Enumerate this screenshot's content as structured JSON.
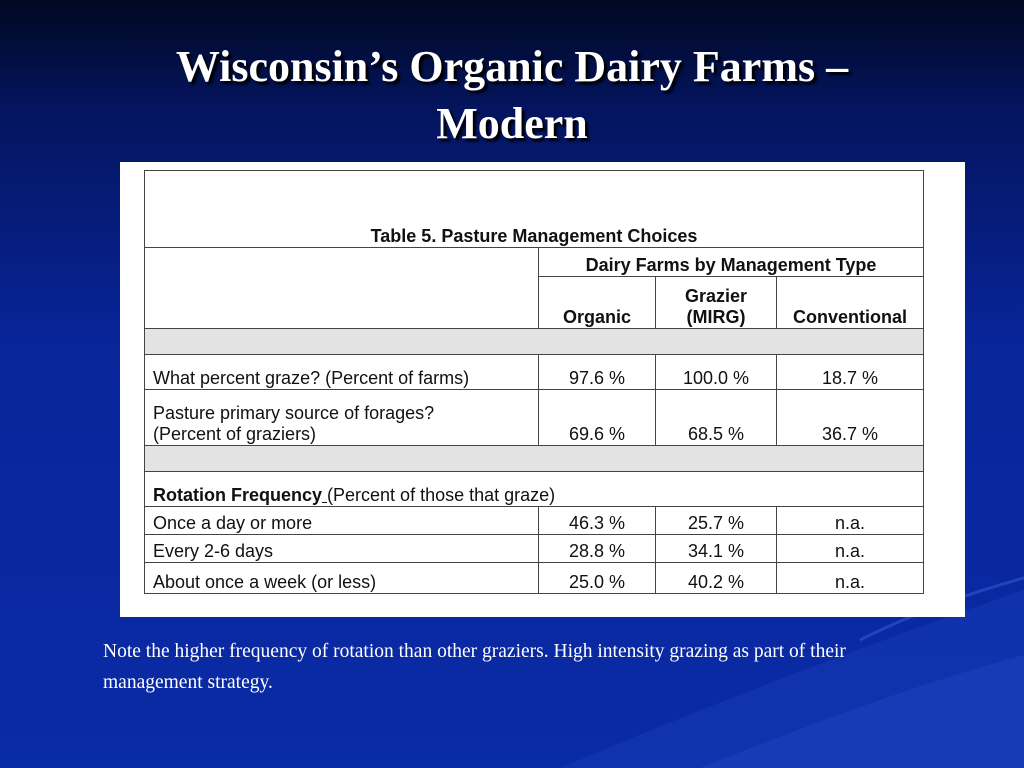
{
  "slide": {
    "title_line1": "Wisconsin’s Organic Dairy Farms –",
    "title_line2": "Modern",
    "note": "Note the higher frequency of rotation than other graziers.  High intensity grazing as part of their management strategy."
  },
  "table": {
    "caption": "Table 5.  Pasture Management Choices",
    "group_header": "Dairy Farms by Management Type",
    "columns": [
      "Organic",
      "Grazier",
      "(MIRG)",
      "Conventional"
    ],
    "rows": {
      "graze": {
        "label": "What percent graze?  (Percent of farms)",
        "organic": "97.6 %",
        "grazier": "100.0 %",
        "conventional": "18.7 %"
      },
      "source": {
        "label_line1": "Pasture primary source of forages?",
        "label_line2": "(Percent of graziers)",
        "organic": "69.6 %",
        "grazier": "68.5 %",
        "conventional": "36.7 %"
      },
      "rotation_header": {
        "bold": "Rotation Frequency",
        "underlined_gap": " ",
        "rest": " (Percent of those that graze)"
      },
      "rotation": [
        {
          "label": "Once a day or more",
          "organic": "46.3 %",
          "grazier": "25.7 %",
          "conventional": "n.a."
        },
        {
          "label": "Every 2-6 days",
          "organic": "28.8 %",
          "grazier": "34.1 %",
          "conventional": "n.a."
        },
        {
          "label": "About once a week (or less)",
          "organic": "25.0 %",
          "grazier": "40.2 %",
          "conventional": "n.a."
        }
      ]
    }
  },
  "colors": {
    "background_top": "#000821",
    "background_main": "#0a2ba6",
    "title_text": "#ffffff",
    "table_shading": "#e3e3e3"
  }
}
